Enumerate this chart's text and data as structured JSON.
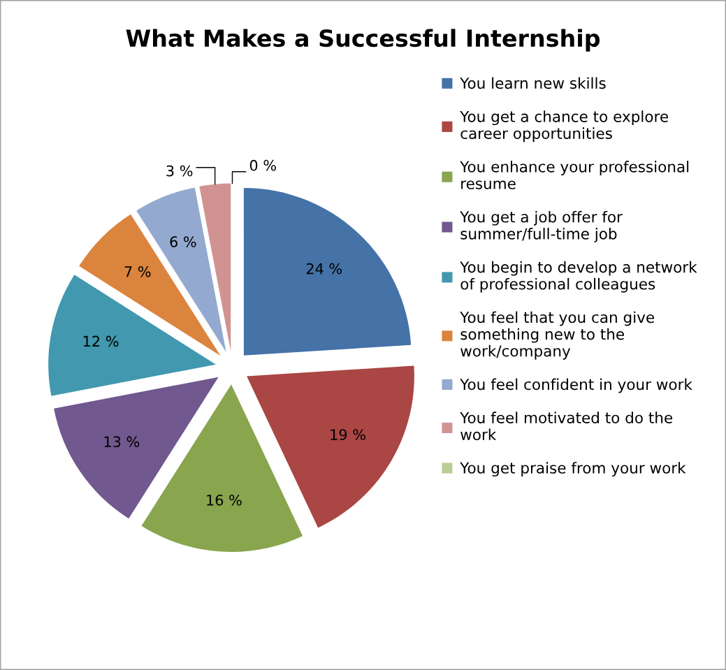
{
  "chart_data": {
    "type": "pie",
    "title": "What Makes a Successful Internship",
    "categories": [
      "You learn new skills",
      "You get a chance to explore\ncareer opportunities",
      "You enhance your professional\nresume",
      "You get a job offer for\nsummer/full-time job",
      "You begin to develop a network\nof professional colleagues",
      "You feel that you can give\nsomething new to the\nwork/company",
      "You feel confident in your work",
      "You feel motivated to do the\nwork",
      "You get praise from your work"
    ],
    "values": [
      24,
      19,
      16,
      13,
      12,
      7,
      6,
      3,
      0
    ],
    "value_labels": [
      "24 %",
      "19 %",
      "16 %",
      "13 %",
      "12 %",
      "7 %",
      "6 %",
      "3 %",
      "0 %"
    ],
    "colors": [
      "#4572a7",
      "#aa4643",
      "#89a54e",
      "#71588f",
      "#4198af",
      "#db843d",
      "#93a9cf",
      "#d19392",
      "#b9cd96"
    ],
    "legend": "right"
  }
}
